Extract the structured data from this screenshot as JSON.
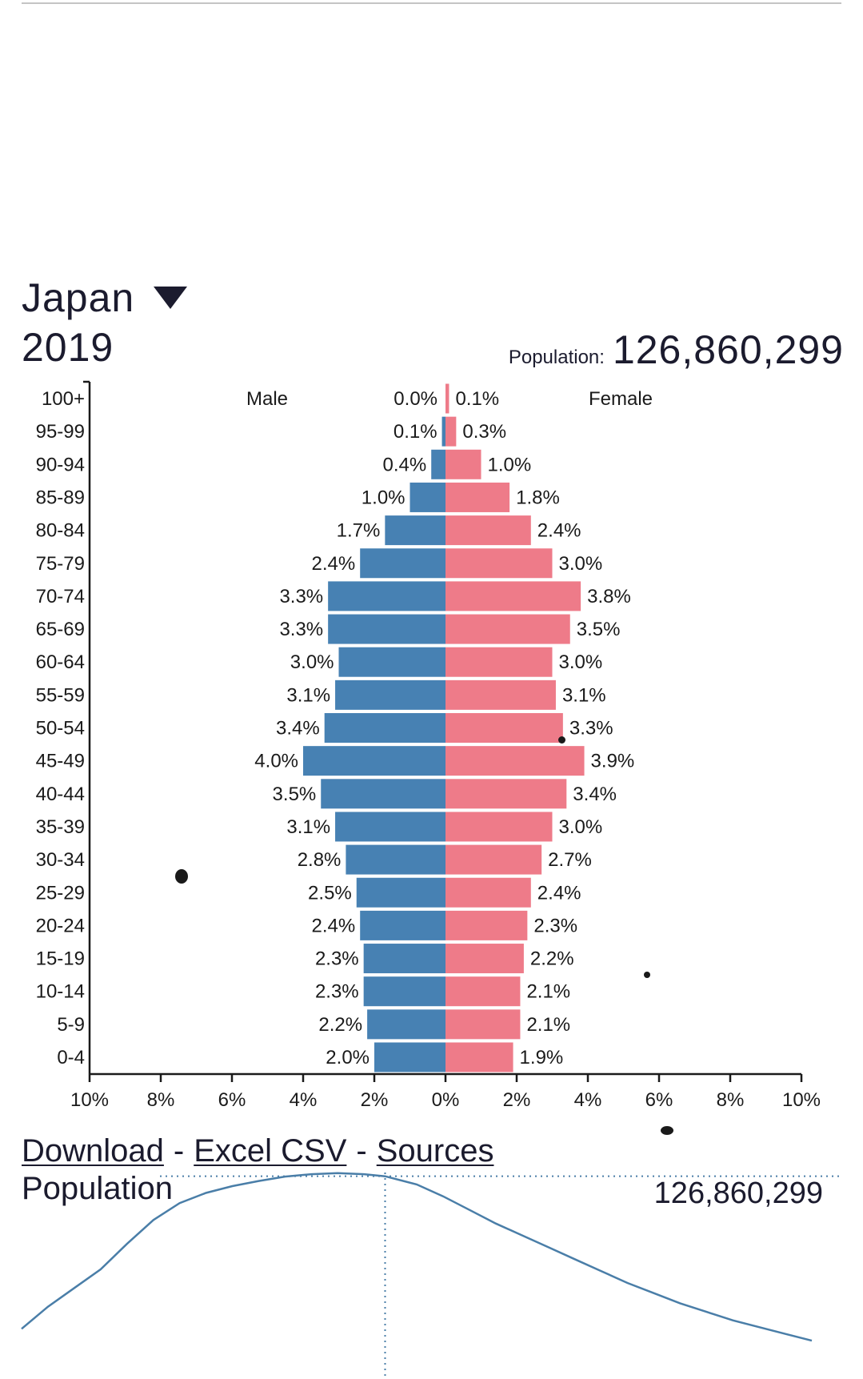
{
  "header": {
    "country": "Japan",
    "year": "2019",
    "population_label": "Population:",
    "population_value": "126,860,299"
  },
  "links": {
    "download": "Download",
    "separator": "-",
    "excel_csv": "Excel CSV",
    "sources": "Sources"
  },
  "population_trend": {
    "title": "Population",
    "value": "126,860,299"
  },
  "colors": {
    "male": "#4781b3",
    "female": "#ee7b89",
    "axis": "#1a1a1a",
    "trend_line": "#4a7ea8"
  },
  "chart_data": [
    {
      "type": "bar",
      "orientation": "horizontal-diverging",
      "series_labels": {
        "male": "Male",
        "female": "Female"
      },
      "categories": [
        "100+",
        "95-99",
        "90-94",
        "85-89",
        "80-84",
        "75-79",
        "70-74",
        "65-69",
        "60-64",
        "55-59",
        "50-54",
        "45-49",
        "40-44",
        "35-39",
        "30-34",
        "25-29",
        "20-24",
        "15-19",
        "10-14",
        "5-9",
        "0-4"
      ],
      "series": [
        {
          "name": "Male",
          "values": [
            0.0,
            0.1,
            0.4,
            1.0,
            1.7,
            2.4,
            3.3,
            3.3,
            3.0,
            3.1,
            3.4,
            4.0,
            3.5,
            3.1,
            2.8,
            2.5,
            2.4,
            2.3,
            2.3,
            2.2,
            2.0
          ],
          "labels": [
            "0.0%",
            "0.1%",
            "0.4%",
            "1.0%",
            "1.7%",
            "2.4%",
            "3.3%",
            "3.3%",
            "3.0%",
            "3.1%",
            "3.4%",
            "4.0%",
            "3.5%",
            "3.1%",
            "2.8%",
            "2.5%",
            "2.4%",
            "2.3%",
            "2.3%",
            "2.2%",
            "2.0%"
          ]
        },
        {
          "name": "Female",
          "values": [
            0.1,
            0.3,
            1.0,
            1.8,
            2.4,
            3.0,
            3.8,
            3.5,
            3.0,
            3.1,
            3.3,
            3.9,
            3.4,
            3.0,
            2.7,
            2.4,
            2.3,
            2.2,
            2.1,
            2.1,
            1.9
          ],
          "labels": [
            "0.1%",
            "0.3%",
            "1.0%",
            "1.8%",
            "2.4%",
            "3.0%",
            "3.8%",
            "3.5%",
            "3.0%",
            "3.1%",
            "3.3%",
            "3.9%",
            "3.4%",
            "3.0%",
            "2.7%",
            "2.4%",
            "2.3%",
            "2.2%",
            "2.1%",
            "2.1%",
            "1.9%"
          ]
        }
      ],
      "x_ticks": [
        "10%",
        "8%",
        "6%",
        "4%",
        "2%",
        "0%",
        "2%",
        "4%",
        "6%",
        "8%",
        "10%"
      ],
      "xlim": [
        -10,
        10
      ],
      "grid": false
    },
    {
      "type": "line",
      "title": "Population",
      "x": [
        1950,
        1955,
        1960,
        1965,
        1970,
        1975,
        1980,
        1985,
        1990,
        1995,
        2000,
        2005,
        2010,
        2015,
        2019,
        2025,
        2030,
        2035,
        2040,
        2045,
        2050,
        2055,
        2060,
        2065,
        2070,
        2075,
        2080,
        2085,
        2090,
        2095,
        2100
      ],
      "values": [
        82.0,
        88.5,
        94.0,
        99.5,
        107.0,
        114.0,
        119.0,
        122.0,
        124.0,
        125.5,
        126.8,
        127.5,
        127.8,
        127.5,
        126.9,
        124.5,
        121.0,
        117.0,
        113.0,
        109.5,
        106.0,
        102.5,
        99.0,
        95.5,
        92.5,
        89.5,
        87.0,
        84.5,
        82.5,
        80.5,
        78.5
      ],
      "highlight_x": 2019,
      "highlight_value": "126,860,299",
      "grid": false
    }
  ]
}
